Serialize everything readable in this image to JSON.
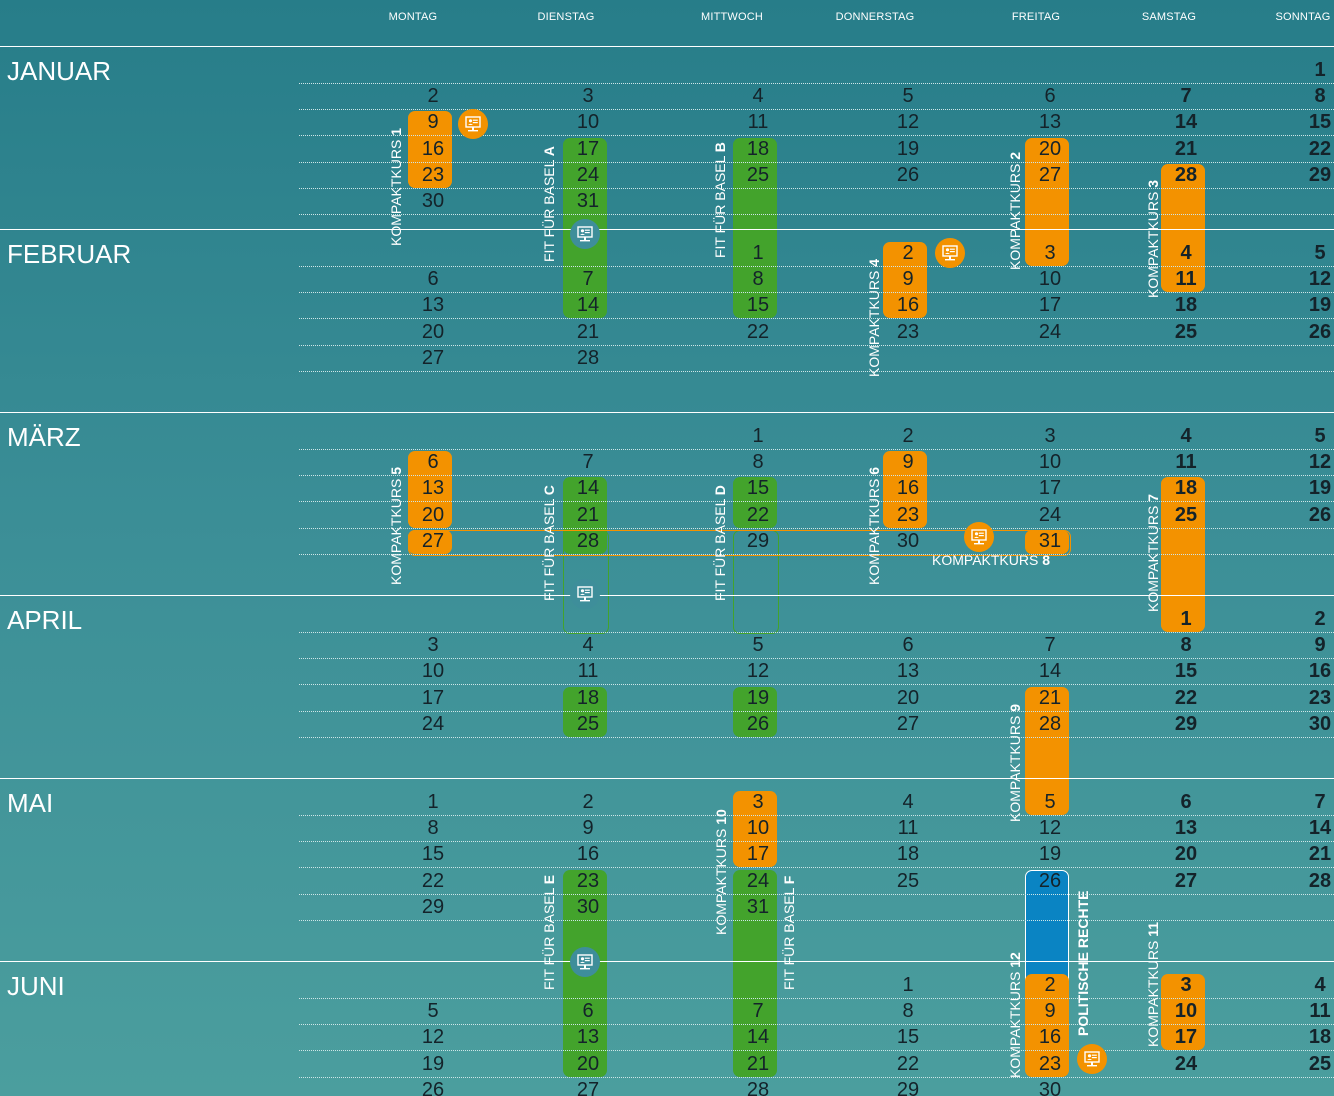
{
  "weekdays": [
    "MONTAG",
    "DIENSTAG",
    "MITTWOCH",
    "DONNERSTAG",
    "FREITAG",
    "SAMSTAG",
    "SONNTAG"
  ],
  "months": [
    {
      "name": "JANUAR",
      "weeks": [
        [
          null,
          null,
          null,
          null,
          null,
          null,
          1
        ],
        [
          2,
          3,
          4,
          5,
          6,
          7,
          8
        ],
        [
          9,
          10,
          11,
          12,
          13,
          14,
          15
        ],
        [
          16,
          17,
          18,
          19,
          20,
          21,
          22
        ],
        [
          23,
          24,
          25,
          26,
          27,
          28,
          29
        ],
        [
          30,
          31,
          null,
          null,
          null,
          null,
          null
        ]
      ]
    },
    {
      "name": "FEBRUAR",
      "weeks": [
        [
          null,
          null,
          1,
          2,
          3,
          4,
          5
        ],
        [
          6,
          7,
          8,
          9,
          10,
          11,
          12
        ],
        [
          13,
          14,
          15,
          16,
          17,
          18,
          19
        ],
        [
          20,
          21,
          22,
          23,
          24,
          25,
          26
        ],
        [
          27,
          28,
          null,
          null,
          null,
          null,
          null
        ]
      ]
    },
    {
      "name": "MÄRZ",
      "weeks": [
        [
          null,
          null,
          1,
          2,
          3,
          4,
          5
        ],
        [
          6,
          7,
          8,
          9,
          10,
          11,
          12
        ],
        [
          13,
          14,
          15,
          16,
          17,
          18,
          19
        ],
        [
          20,
          21,
          22,
          23,
          24,
          25,
          26
        ],
        [
          27,
          28,
          29,
          30,
          31,
          null,
          null
        ]
      ]
    },
    {
      "name": "APRIL",
      "weeks": [
        [
          null,
          null,
          null,
          null,
          null,
          1,
          2
        ],
        [
          3,
          4,
          5,
          6,
          7,
          8,
          9
        ],
        [
          10,
          11,
          12,
          13,
          14,
          15,
          16
        ],
        [
          17,
          18,
          19,
          20,
          21,
          22,
          23
        ],
        [
          24,
          25,
          26,
          27,
          28,
          29,
          30
        ]
      ]
    },
    {
      "name": "MAI",
      "weeks": [
        [
          1,
          2,
          3,
          4,
          5,
          6,
          7
        ],
        [
          8,
          9,
          10,
          11,
          12,
          13,
          14
        ],
        [
          15,
          16,
          17,
          18,
          19,
          20,
          21
        ],
        [
          22,
          23,
          24,
          25,
          26,
          27,
          28
        ],
        [
          29,
          30,
          31,
          null,
          null,
          null,
          null
        ]
      ]
    },
    {
      "name": "JUNI",
      "weeks": [
        [
          null,
          null,
          null,
          1,
          2,
          3,
          4
        ],
        [
          5,
          6,
          7,
          8,
          9,
          10,
          11
        ],
        [
          12,
          13,
          14,
          15,
          16,
          17,
          18
        ],
        [
          19,
          20,
          21,
          22,
          23,
          24,
          25
        ],
        [
          26,
          27,
          28,
          29,
          30,
          null,
          null
        ]
      ]
    }
  ],
  "courses": [
    {
      "kind": "kompakt",
      "text": "KOMPAKTKURS ",
      "num": "1",
      "color": "orange"
    },
    {
      "kind": "fit",
      "text": "FIT FÜR BASEL ",
      "num": "A",
      "color": "green"
    },
    {
      "kind": "fit",
      "text": "FIT FÜR BASEL ",
      "num": "B",
      "color": "green"
    },
    {
      "kind": "kompakt",
      "text": "KOMPAKTKURS ",
      "num": "2",
      "color": "orange"
    },
    {
      "kind": "kompakt",
      "text": "KOMPAKTKURS ",
      "num": "3",
      "color": "orange"
    },
    {
      "kind": "kompakt",
      "text": "KOMPAKTKURS ",
      "num": "4",
      "color": "orange"
    },
    {
      "kind": "kompakt",
      "text": "KOMPAKTKURS ",
      "num": "5",
      "color": "orange"
    },
    {
      "kind": "fit",
      "text": "FIT FÜR BASEL ",
      "num": "C",
      "color": "green"
    },
    {
      "kind": "fit",
      "text": "FIT FÜR BASEL ",
      "num": "D",
      "color": "green"
    },
    {
      "kind": "kompakt",
      "text": "KOMPAKTKURS ",
      "num": "6",
      "color": "orange"
    },
    {
      "kind": "kompakt",
      "text": "KOMPAKTKURS ",
      "num": "7",
      "color": "orange"
    },
    {
      "kind": "kompakt",
      "text": "KOMPAKTKURS ",
      "num": "8",
      "color": "orange"
    },
    {
      "kind": "kompakt",
      "text": "KOMPAKTKURS ",
      "num": "9",
      "color": "orange"
    },
    {
      "kind": "kompakt",
      "text": "KOMPAKTKURS ",
      "num": "10",
      "color": "orange"
    },
    {
      "kind": "fit",
      "text": "FIT FÜR BASEL ",
      "num": "E",
      "color": "green"
    },
    {
      "kind": "fit",
      "text": "FIT FÜR BASEL ",
      "num": "F",
      "color": "green"
    },
    {
      "kind": "kompakt",
      "text": "KOMPAKTKURS ",
      "num": "11",
      "color": "orange"
    },
    {
      "kind": "kompakt",
      "text": "KOMPAKTKURS ",
      "num": "12",
      "color": "orange"
    },
    {
      "kind": "special",
      "text": "",
      "num": "POLITISCHE RECHTE",
      "color": "blue"
    }
  ],
  "colors": {
    "orange": "#f39200",
    "green": "#43a32c",
    "blue": "#0a84c3",
    "text": "#14232a",
    "background": "#2f8690"
  },
  "icons": [
    "online-session-icon"
  ]
}
